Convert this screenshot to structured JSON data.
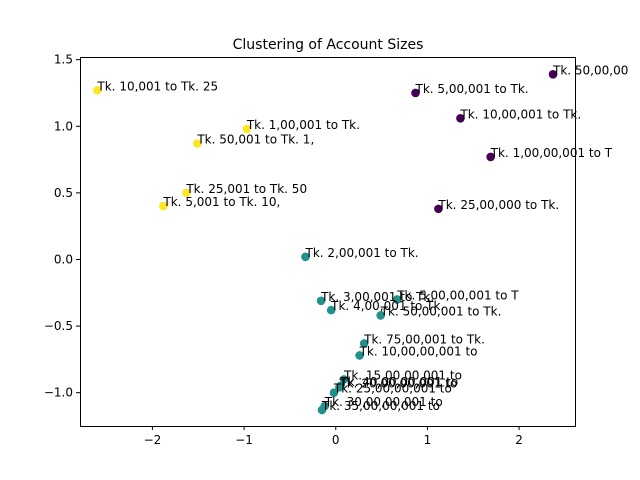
{
  "chart_data": {
    "type": "scatter",
    "title": "Clustering of Account Sizes",
    "xlabel": "",
    "ylabel": "",
    "xlim": [
      -2.79,
      2.61
    ],
    "ylim": [
      -1.25,
      1.52
    ],
    "xticks": [
      -2,
      -1,
      0,
      1,
      2
    ],
    "yticks": [
      -1.0,
      -0.5,
      0.0,
      0.5,
      1.0,
      1.5
    ],
    "xtick_labels": [
      "−2",
      "−1",
      "0",
      "1",
      "2"
    ],
    "ytick_labels": [
      "−1.0",
      "−0.5",
      "0.0",
      "0.5",
      "1.0",
      "1.5"
    ],
    "grid": false,
    "cluster_colors": [
      "#440154",
      "#21918c",
      "#fde725"
    ],
    "points": [
      {
        "label": "Tk. 50,00,00",
        "x": 2.37,
        "y": 1.39,
        "cluster": 0
      },
      {
        "label": "Tk. 5,00,001 to Tk.",
        "x": 0.87,
        "y": 1.25,
        "cluster": 0
      },
      {
        "label": "Tk. 10,00,001 to Tk.",
        "x": 1.36,
        "y": 1.06,
        "cluster": 0
      },
      {
        "label": "Tk. 1,00,00,001 to T",
        "x": 1.69,
        "y": 0.77,
        "cluster": 0
      },
      {
        "label": "Tk. 25,00,000 to Tk.",
        "x": 1.12,
        "y": 0.38,
        "cluster": 0
      },
      {
        "label": "Tk. 10,001 to Tk. 25",
        "x": -2.6,
        "y": 1.27,
        "cluster": 2
      },
      {
        "label": "Tk. 1,00,001 to Tk.",
        "x": -0.97,
        "y": 0.98,
        "cluster": 2
      },
      {
        "label": "Tk. 50,001 to Tk. 1,",
        "x": -1.51,
        "y": 0.87,
        "cluster": 2
      },
      {
        "label": "Tk. 25,001 to Tk. 50",
        "x": -1.63,
        "y": 0.5,
        "cluster": 2
      },
      {
        "label": "Tk. 5,001 to Tk. 10,",
        "x": -1.88,
        "y": 0.4,
        "cluster": 2
      },
      {
        "label": "Tk. 2,00,001 to Tk.",
        "x": -0.33,
        "y": 0.02,
        "cluster": 1
      },
      {
        "label": "Tk. 3,00,001 to Tk.",
        "x": -0.16,
        "y": -0.31,
        "cluster": 1
      },
      {
        "label": "Tk. 5,00,00,001 to T",
        "x": 0.67,
        "y": -0.3,
        "cluster": 1
      },
      {
        "label": "Tk. 4,00,001 to Tk.",
        "x": -0.05,
        "y": -0.38,
        "cluster": 1
      },
      {
        "label": "Tk. 50,00,001 to Tk.",
        "x": 0.49,
        "y": -0.42,
        "cluster": 1
      },
      {
        "label": "Tk. 75,00,001 to Tk.",
        "x": 0.31,
        "y": -0.63,
        "cluster": 1
      },
      {
        "label": "Tk. 10,00,00,001 to",
        "x": 0.26,
        "y": -0.72,
        "cluster": 1
      },
      {
        "label": "Tk. 15,00,00,001 to",
        "x": 0.09,
        "y": -0.9,
        "cluster": 1
      },
      {
        "label": "Tk. 40,00,00,001 to",
        "x": 0.05,
        "y": -0.95,
        "cluster": 1
      },
      {
        "label": "Tk. 20,00,00,001 to",
        "x": 0.04,
        "y": -0.96,
        "cluster": 1
      },
      {
        "label": "Tk. 25,00,00,001 to",
        "x": -0.02,
        "y": -1.0,
        "cluster": 1
      },
      {
        "label": "Tk. 30,00,00,001 to",
        "x": -0.12,
        "y": -1.1,
        "cluster": 1
      },
      {
        "label": "Tk. 35,00,00,001 to",
        "x": -0.15,
        "y": -1.13,
        "cluster": 1
      }
    ]
  }
}
